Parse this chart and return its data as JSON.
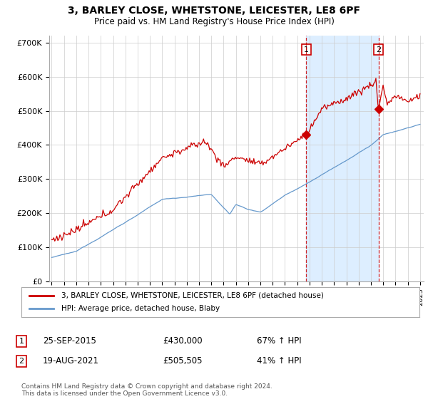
{
  "title": "3, BARLEY CLOSE, WHETSTONE, LEICESTER, LE8 6PF",
  "subtitle": "Price paid vs. HM Land Registry's House Price Index (HPI)",
  "ylim": [
    0,
    720000
  ],
  "yticks": [
    0,
    100000,
    200000,
    300000,
    400000,
    500000,
    600000,
    700000
  ],
  "ytick_labels": [
    "£0",
    "£100K",
    "£200K",
    "£300K",
    "£400K",
    "£500K",
    "£600K",
    "£700K"
  ],
  "sale1_date": 2015.73,
  "sale1_price": 430000,
  "sale2_date": 2021.63,
  "sale2_price": 505505,
  "legend_red": "3, BARLEY CLOSE, WHETSTONE, LEICESTER, LE8 6PF (detached house)",
  "legend_blue": "HPI: Average price, detached house, Blaby",
  "footer": "Contains HM Land Registry data © Crown copyright and database right 2024.\nThis data is licensed under the Open Government Licence v3.0.",
  "red_color": "#cc0000",
  "blue_color": "#6699cc",
  "shade_color": "#ddeeff",
  "bg_color": "#ffffff",
  "grid_color": "#cccccc"
}
